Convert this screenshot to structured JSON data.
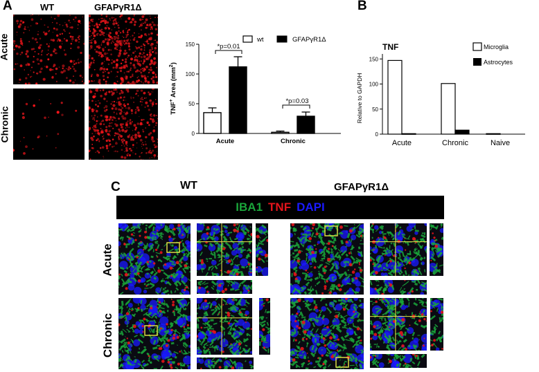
{
  "panel_a": {
    "letter": "A",
    "col_wt": "WT",
    "col_ko": "GFAPγR1Δ",
    "row_acute": "Acute",
    "row_chronic": "Chronic"
  },
  "panel_b": {
    "letter": "B"
  },
  "panel_c": {
    "letter": "C",
    "col_wt": "WT",
    "col_ko": "GFAPγR1Δ",
    "row_acute": "Acute",
    "row_chronic": "Chronic",
    "stain1": "IBA1",
    "stain2": "TNF",
    "stain3": "DAPI",
    "colors": {
      "iba1": "#1aa53a",
      "tnf": "#e4141b",
      "dapi": "#1a1aff",
      "crosshair": "#e8e84a"
    }
  },
  "chart_data": [
    {
      "type": "bar",
      "categories": [
        "Acute",
        "Chronic"
      ],
      "series": [
        {
          "name": "wt",
          "values": [
            35,
            2
          ],
          "errors": [
            8,
            2
          ],
          "fill": "#ffffff"
        },
        {
          "name": "GFAPγR1Δ",
          "values": [
            112,
            29
          ],
          "errors": [
            17,
            7
          ],
          "fill": "#000000"
        }
      ],
      "ylabel_main": "TNF",
      "ylabel_sup": "+",
      "ylabel_rest": " Area (mm",
      "ylabel_sup2": "2",
      "ylabel_end": ")",
      "ylim": [
        0,
        150
      ],
      "yticks": [
        0,
        50,
        100,
        150
      ],
      "annotations": [
        "*p=0.01",
        "*p=0.03"
      ],
      "legend": "top"
    },
    {
      "type": "bar",
      "title": "TNF",
      "categories": [
        "Acute",
        "Chronic",
        "Naive"
      ],
      "series": [
        {
          "name": "Microglia",
          "values": [
            147,
            101,
            1
          ],
          "fill": "#ffffff"
        },
        {
          "name": "Astrocytes",
          "values": [
            1,
            8,
            0
          ],
          "fill": "#000000"
        }
      ],
      "ylabel": "Relative to GAPDH",
      "ylim": [
        0,
        160
      ],
      "yticks": [
        0,
        50,
        100,
        150
      ],
      "legend": "top-right"
    }
  ]
}
